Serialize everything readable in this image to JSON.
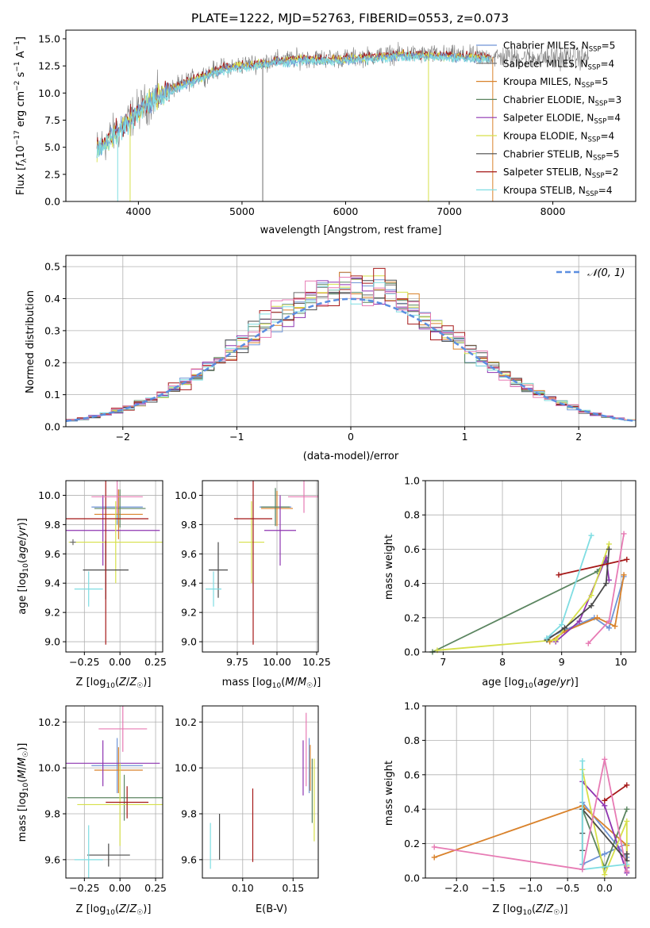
{
  "figure": {
    "title": "PLATE=1222, MJD=52763, FIBERID=0553, z=0.073"
  },
  "colors": {
    "Chabrier MILES": "#6f95d6",
    "Salpeter MILES": "#6b6b6b",
    "Kroupa MILES": "#d9822b",
    "Chabrier ELODIE": "#5b8560",
    "Salpeter ELODIE": "#8e35b0",
    "Kroupa ELODIE": "#d6e04a",
    "Chabrier STELIB": "#4a4a4a",
    "Salpeter STELIB": "#a51818",
    "Kroupa STELIB": "#7fdde2",
    "extra pink": "#e77bb4",
    "normal curve": "#5b8ee0"
  },
  "chart_data": [
    {
      "id": "spectrum",
      "type": "line",
      "title": "PLATE=1222, MJD=52763, FIBERID=0553, z=0.073",
      "xlabel": "wavelength [Angstrom, rest frame]",
      "ylabel": "Flux [f_λ10^-17 erg cm^-2 s^-1 A^-1]",
      "xlim": [
        3300,
        8800
      ],
      "ylim": [
        0,
        15.8
      ],
      "xticks": [
        4000,
        5000,
        6000,
        7000,
        8000
      ],
      "yticks": [
        0.0,
        2.5,
        5.0,
        7.5,
        10.0,
        12.5,
        15.0
      ],
      "ytick_labels": [
        "0.0",
        "2.5",
        "5.0",
        "7.5",
        "10.0",
        "12.5",
        "15.0"
      ],
      "legend_location": "right",
      "legend": [
        {
          "label": "Chabrier MILES, N_SSP=5",
          "name": "Chabrier MILES"
        },
        {
          "label": "Salpeter MILES, N_SSP=4",
          "name": "Salpeter MILES"
        },
        {
          "label": "Kroupa MILES, N_SSP=5",
          "name": "Kroupa MILES"
        },
        {
          "label": "Chabrier ELODIE, N_SSP=3",
          "name": "Chabrier ELODIE"
        },
        {
          "label": "Salpeter ELODIE, N_SSP=4",
          "name": "Salpeter ELODIE"
        },
        {
          "label": "Kroupa ELODIE, N_SSP=4",
          "name": "Kroupa ELODIE"
        },
        {
          "label": "Chabrier STELIB, N_SSP=5",
          "name": "Chabrier STELIB"
        },
        {
          "label": "Salpeter STELIB, N_SSP=2",
          "name": "Salpeter STELIB"
        },
        {
          "label": "Kroupa STELIB, N_SSP=4",
          "name": "Kroupa STELIB"
        }
      ],
      "observed_range": [
        3600,
        8350
      ],
      "continuum": [
        [
          3600,
          4.8
        ],
        [
          3800,
          6.5
        ],
        [
          4000,
          8.5
        ],
        [
          4200,
          9.8
        ],
        [
          4500,
          11.2
        ],
        [
          4800,
          12.3
        ],
        [
          5000,
          12.6
        ],
        [
          5300,
          13.0
        ],
        [
          5600,
          13.2
        ],
        [
          6000,
          13.2
        ],
        [
          6500,
          13.6
        ],
        [
          7000,
          13.5
        ],
        [
          7500,
          13.3
        ],
        [
          8000,
          13.3
        ],
        [
          8350,
          13.3
        ]
      ],
      "model_range": [
        3600,
        7400
      ],
      "drops": [
        {
          "x": 3800,
          "y": 0.0,
          "color": "#7fdde2"
        },
        {
          "x": 3920,
          "y": 0.0,
          "color": "#d6e04a"
        },
        {
          "x": 5200,
          "y": 0.0,
          "color": "#6b6b6b"
        },
        {
          "x": 6800,
          "y": 0.0,
          "color": "#d6e04a"
        },
        {
          "x": 7420,
          "y": 0.0,
          "color": "#d9822b"
        }
      ]
    },
    {
      "id": "histogram",
      "type": "bar",
      "xlabel": "(data-model)/error",
      "ylabel": "Normed distribution",
      "xlim": [
        -2.5,
        2.5
      ],
      "ylim": [
        0,
        0.535
      ],
      "xticks": [
        -2,
        -1,
        0,
        1,
        2
      ],
      "xtick_labels": [
        "−2",
        "−1",
        "0",
        "1",
        "2"
      ],
      "yticks": [
        0.0,
        0.1,
        0.2,
        0.3,
        0.4,
        0.5
      ],
      "ytick_labels": [
        "0.0",
        "0.1",
        "0.2",
        "0.3",
        "0.4",
        "0.5"
      ],
      "grid": true,
      "legend": [
        {
          "label": "𝒩(0, 1)",
          "style": "dashed"
        }
      ],
      "legend_location": "top-right",
      "bin_width": 0.1,
      "series_colors": [
        "#6f95d6",
        "#6b6b6b",
        "#d9822b",
        "#5b8560",
        "#8e35b0",
        "#d6e04a",
        "#4a4a4a",
        "#a51818",
        "#7fdde2",
        "#e77bb4"
      ]
    },
    {
      "id": "age-vs-Z",
      "type": "scatter",
      "xlabel": "Z [log10(Z/Z☉)]",
      "ylabel": "age  [log10(age/yr)]",
      "xlim": [
        -0.38,
        0.3
      ],
      "ylim": [
        8.93,
        10.1
      ],
      "xticks": [
        -0.25,
        0.0,
        0.25
      ],
      "xtick_labels": [
        "−0.25",
        "0.00",
        "0.25"
      ],
      "yticks": [
        9.0,
        9.2,
        9.4,
        9.6,
        9.8,
        10.0
      ],
      "ytick_labels": [
        "9.0",
        "9.2",
        "9.4",
        "9.6",
        "9.8",
        "10.0"
      ],
      "grid": true,
      "points": [
        {
          "x": -0.02,
          "y": 9.92,
          "xerr": 0.18,
          "yerr": 0.12,
          "color": "#6f95d6"
        },
        {
          "x": -0.01,
          "y": 9.87,
          "xerr": 0.17,
          "yerr": 0.17,
          "color": "#d9822b"
        },
        {
          "x": 0.0,
          "y": 9.91,
          "xerr": 0.18,
          "yerr": 0.13,
          "color": "#5b8560"
        },
        {
          "x": -0.12,
          "y": 9.76,
          "xerr": 0.4,
          "yerr": 0.24,
          "color": "#8e35b0"
        },
        {
          "x": -0.03,
          "y": 9.68,
          "xerr": 0.33,
          "yerr": 0.28,
          "color": "#d6e04a"
        },
        {
          "x": -0.1,
          "y": 9.49,
          "xerr": 0.16,
          "yerr": 0.2,
          "color": "#4a4a4a"
        },
        {
          "x": -0.1,
          "y": 9.84,
          "xerr": 0.3,
          "yerr": 0.86,
          "color": "#a51818"
        },
        {
          "x": -0.22,
          "y": 9.36,
          "xerr": 0.1,
          "yerr": 0.12,
          "color": "#7fdde2"
        },
        {
          "x": -0.02,
          "y": 9.99,
          "xerr": 0.18,
          "yerr": 0.11,
          "color": "#e77bb4"
        },
        {
          "x": -0.33,
          "y": 9.68,
          "xerr": 0.02,
          "yerr": 0.02,
          "color": "#6b6b6b"
        }
      ]
    },
    {
      "id": "age-vs-mass",
      "type": "scatter",
      "xlabel": "mass [log10(M/M☉)]",
      "ylabel": "",
      "xlim": [
        9.53,
        10.26
      ],
      "ylim": [
        8.93,
        10.1
      ],
      "xticks": [
        9.75,
        10.0,
        10.25
      ],
      "xtick_labels": [
        "9.75",
        "10.00",
        "10.25"
      ],
      "yticks": [
        9.0,
        9.2,
        9.4,
        9.6,
        9.8,
        10.0
      ],
      "ytick_labels": [
        "9.0",
        "9.2",
        "9.4",
        "9.6",
        "9.8",
        "10.0"
      ],
      "grid": true,
      "points": [
        {
          "x": 9.99,
          "y": 9.92,
          "xerr": 0.1,
          "yerr": 0.12,
          "color": "#6f95d6"
        },
        {
          "x": 10.0,
          "y": 9.91,
          "xerr": 0.1,
          "yerr": 0.12,
          "color": "#d9822b"
        },
        {
          "x": 9.99,
          "y": 9.92,
          "xerr": 0.09,
          "yerr": 0.13,
          "color": "#5b8560"
        },
        {
          "x": 10.02,
          "y": 9.76,
          "xerr": 0.1,
          "yerr": 0.24,
          "color": "#8e35b0"
        },
        {
          "x": 9.84,
          "y": 9.68,
          "xerr": 0.08,
          "yerr": 0.28,
          "color": "#d6e04a"
        },
        {
          "x": 9.63,
          "y": 9.49,
          "xerr": 0.06,
          "yerr": 0.19,
          "color": "#4a4a4a"
        },
        {
          "x": 9.85,
          "y": 9.84,
          "xerr": 0.12,
          "yerr": 0.86,
          "color": "#a51818"
        },
        {
          "x": 9.6,
          "y": 9.36,
          "xerr": 0.05,
          "yerr": 0.12,
          "color": "#7fdde2"
        },
        {
          "x": 10.17,
          "y": 9.99,
          "xerr": 0.1,
          "yerr": 0.11,
          "color": "#e77bb4"
        }
      ]
    },
    {
      "id": "weight-vs-age",
      "type": "line",
      "xlabel": "age  [log10(age/yr)]",
      "ylabel": "mass weight",
      "xlim": [
        6.7,
        10.25
      ],
      "ylim": [
        0,
        1
      ],
      "xticks": [
        7,
        8,
        9,
        10
      ],
      "yticks": [
        0.0,
        0.2,
        0.4,
        0.6,
        0.8,
        1.0
      ],
      "ytick_labels": [
        "0.0",
        "0.2",
        "0.4",
        "0.6",
        "0.8",
        "1.0"
      ],
      "grid": true,
      "series": [
        {
          "color": "#6f95d6",
          "points": [
            [
              8.75,
              0.08
            ],
            [
              9.0,
              0.12
            ],
            [
              9.55,
              0.2
            ],
            [
              9.8,
              0.14
            ],
            [
              10.05,
              0.44
            ]
          ]
        },
        {
          "color": "#d9822b",
          "points": [
            [
              8.8,
              0.06
            ],
            [
              9.05,
              0.12
            ],
            [
              9.6,
              0.2
            ],
            [
              9.9,
              0.15
            ],
            [
              10.05,
              0.45
            ]
          ]
        },
        {
          "color": "#5b8560",
          "points": [
            [
              6.82,
              0.0
            ],
            [
              9.6,
              0.47
            ],
            [
              9.75,
              0.53
            ]
          ]
        },
        {
          "color": "#8e35b0",
          "points": [
            [
              8.9,
              0.06
            ],
            [
              9.3,
              0.18
            ],
            [
              9.75,
              0.55
            ],
            [
              9.8,
              0.42
            ]
          ]
        },
        {
          "color": "#d6e04a",
          "points": [
            [
              6.9,
              0.01
            ],
            [
              8.9,
              0.07
            ],
            [
              9.5,
              0.33
            ],
            [
              9.8,
              0.63
            ]
          ]
        },
        {
          "color": "#4a4a4a",
          "points": [
            [
              8.75,
              0.07
            ],
            [
              9.05,
              0.14
            ],
            [
              9.5,
              0.27
            ],
            [
              9.75,
              0.4
            ],
            [
              9.8,
              0.6
            ]
          ]
        },
        {
          "color": "#a51818",
          "points": [
            [
              8.95,
              0.45
            ],
            [
              10.1,
              0.54
            ]
          ]
        },
        {
          "color": "#7fdde2",
          "points": [
            [
              8.75,
              0.08
            ],
            [
              9.0,
              0.16
            ],
            [
              9.5,
              0.68
            ]
          ]
        },
        {
          "color": "#e77bb4",
          "points": [
            [
              9.45,
              0.05
            ],
            [
              9.8,
              0.18
            ],
            [
              10.05,
              0.69
            ]
          ]
        }
      ]
    },
    {
      "id": "mass-vs-Z",
      "type": "scatter",
      "xlabel": "Z [log10(Z/Z☉)]",
      "ylabel": "mass [log10(M/M☉)]",
      "xlim": [
        -0.38,
        0.3
      ],
      "ylim": [
        9.52,
        10.27
      ],
      "xticks": [
        -0.25,
        0.0,
        0.25
      ],
      "xtick_labels": [
        "−0.25",
        "0.00",
        "0.25"
      ],
      "yticks": [
        9.6,
        9.8,
        10.0,
        10.2
      ],
      "ytick_labels": [
        "9.6",
        "9.8",
        "10.0",
        "10.2"
      ],
      "grid": true,
      "points": [
        {
          "x": -0.02,
          "y": 10.01,
          "xerr": 0.18,
          "yerr": 0.12,
          "color": "#6f95d6"
        },
        {
          "x": -0.01,
          "y": 9.99,
          "xerr": 0.17,
          "yerr": 0.1,
          "color": "#d9822b"
        },
        {
          "x": 0.03,
          "y": 9.87,
          "xerr": 0.4,
          "yerr": 0.1,
          "color": "#5b8560"
        },
        {
          "x": -0.12,
          "y": 10.02,
          "xerr": 0.4,
          "yerr": 0.1,
          "color": "#8e35b0"
        },
        {
          "x": 0.0,
          "y": 9.84,
          "xerr": 0.3,
          "yerr": 0.18,
          "color": "#d6e04a"
        },
        {
          "x": -0.08,
          "y": 9.62,
          "xerr": 0.15,
          "yerr": 0.05,
          "color": "#4a4a4a"
        },
        {
          "x": 0.05,
          "y": 9.85,
          "xerr": 0.15,
          "yerr": 0.07,
          "color": "#a51818"
        },
        {
          "x": -0.22,
          "y": 9.6,
          "xerr": 0.1,
          "yerr": 0.15,
          "color": "#7fdde2"
        },
        {
          "x": 0.02,
          "y": 10.17,
          "xerr": 0.17,
          "yerr": 0.1,
          "color": "#e77bb4"
        }
      ]
    },
    {
      "id": "mass-vs-EBV",
      "type": "scatter",
      "xlabel": "E(B-V)",
      "ylabel": "",
      "xlim": [
        0.06,
        0.175
      ],
      "ylim": [
        9.52,
        10.27
      ],
      "xticks": [
        0.1,
        0.15
      ],
      "xtick_labels": [
        "0.10",
        "0.15"
      ],
      "yticks": [
        9.6,
        9.8,
        10.0,
        10.2
      ],
      "ytick_labels": [
        "9.6",
        "9.8",
        "10.0",
        "10.2"
      ],
      "grid": true,
      "points": [
        {
          "x": 0.068,
          "y": 9.66,
          "xerr": 0,
          "yerr": 0.1,
          "color": "#7fdde2"
        },
        {
          "x": 0.077,
          "y": 9.7,
          "xerr": 0,
          "yerr": 0.1,
          "color": "#4a4a4a"
        },
        {
          "x": 0.11,
          "y": 9.75,
          "xerr": 0,
          "yerr": 0.16,
          "color": "#a51818"
        },
        {
          "x": 0.16,
          "y": 10.0,
          "xerr": 0,
          "yerr": 0.12,
          "color": "#8e35b0"
        },
        {
          "x": 0.163,
          "y": 10.08,
          "xerr": 0,
          "yerr": 0.16,
          "color": "#e77bb4"
        },
        {
          "x": 0.166,
          "y": 10.01,
          "xerr": 0,
          "yerr": 0.12,
          "color": "#6f95d6"
        },
        {
          "x": 0.167,
          "y": 10.0,
          "xerr": 0,
          "yerr": 0.1,
          "color": "#d9822b"
        },
        {
          "x": 0.169,
          "y": 9.9,
          "xerr": 0,
          "yerr": 0.14,
          "color": "#5b8560"
        },
        {
          "x": 0.171,
          "y": 9.86,
          "xerr": 0,
          "yerr": 0.18,
          "color": "#d6e04a"
        }
      ]
    },
    {
      "id": "weight-vs-Z",
      "type": "line",
      "xlabel": "Z [log10(Z/Z☉)]",
      "ylabel": "mass weight",
      "xlim": [
        -2.42,
        0.42
      ],
      "ylim": [
        0,
        1
      ],
      "xticks": [
        -2.0,
        -1.5,
        -1.0,
        -0.5,
        0.0
      ],
      "xtick_labels": [
        "−2.0",
        "−1.5",
        "−1.0",
        "−0.5",
        "0.0"
      ],
      "yticks": [
        0.0,
        0.2,
        0.4,
        0.6,
        0.8,
        1.0
      ],
      "ytick_labels": [
        "0.0",
        "0.2",
        "0.4",
        "0.6",
        "0.8",
        "1.0"
      ],
      "grid": true,
      "series": [
        {
          "color": "#6f95d6",
          "points": [
            [
              -0.3,
              0.44
            ],
            [
              0.3,
              0.12
            ],
            [
              0.3,
              0.2
            ],
            [
              -0.3,
              0.08
            ],
            [
              0.0,
              0.14
            ]
          ]
        },
        {
          "color": "#d9822b",
          "points": [
            [
              -2.3,
              0.12
            ],
            [
              -0.3,
              0.42
            ],
            [
              0.3,
              0.19
            ],
            [
              0.3,
              0.1
            ]
          ]
        },
        {
          "color": "#5b8560",
          "points": [
            [
              -0.3,
              0.4
            ],
            [
              0.0,
              0.06
            ],
            [
              0.3,
              0.4
            ]
          ]
        },
        {
          "color": "#8e35b0",
          "points": [
            [
              -0.3,
              0.56
            ],
            [
              0.0,
              0.42
            ],
            [
              0.3,
              0.03
            ],
            [
              0.3,
              0.06
            ]
          ]
        },
        {
          "color": "#d6e04a",
          "points": [
            [
              -0.3,
              0.63
            ],
            [
              0.0,
              0.02
            ],
            [
              0.3,
              0.33
            ],
            [
              0.3,
              0.07
            ]
          ]
        },
        {
          "color": "#4a4a4a",
          "points": [
            [
              -0.3,
              0.26
            ],
            [
              -0.3,
              0.16
            ],
            [
              -0.3,
              0.4
            ],
            [
              0.3,
              0.1
            ],
            [
              0.3,
              0.14
            ]
          ]
        },
        {
          "color": "#a51818",
          "points": [
            [
              0.0,
              0.45
            ],
            [
              0.3,
              0.54
            ]
          ]
        },
        {
          "color": "#7fdde2",
          "points": [
            [
              -0.3,
              0.68
            ],
            [
              -0.3,
              0.05
            ],
            [
              0.3,
              0.08
            ]
          ]
        },
        {
          "color": "#e77bb4",
          "points": [
            [
              -2.3,
              0.18
            ],
            [
              -0.3,
              0.05
            ],
            [
              0.0,
              0.69
            ],
            [
              0.3,
              0.04
            ]
          ]
        }
      ]
    }
  ]
}
